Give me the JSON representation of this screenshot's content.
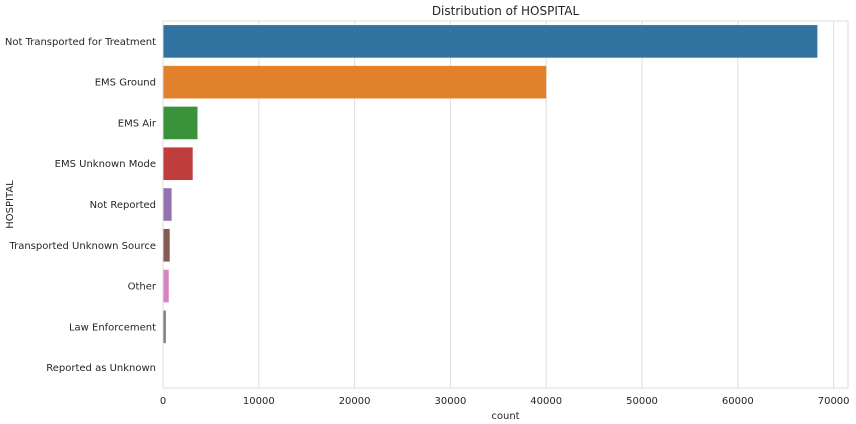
{
  "chart_data": {
    "type": "bar",
    "orientation": "horizontal",
    "title": "Distribution of HOSPITAL",
    "xlabel": "count",
    "ylabel": "HOSPITAL",
    "categories": [
      "Not Transported for Treatment",
      "EMS Ground",
      "EMS Air",
      "EMS Unknown Mode",
      "Not Reported",
      "Transported  Unknown Source",
      "Other",
      "Law Enforcement",
      "Reported as Unknown"
    ],
    "values": [
      68300,
      40000,
      3600,
      3100,
      900,
      700,
      600,
      300,
      20
    ],
    "colors": [
      "#3274a1",
      "#e1812c",
      "#3a923a",
      "#c03d3e",
      "#9372b2",
      "#845b53",
      "#d684bd",
      "#7f7f7f",
      "#a9aa35"
    ],
    "xlim": [
      0,
      71500
    ],
    "xticks": [
      0,
      10000,
      20000,
      30000,
      40000,
      50000,
      60000,
      70000
    ],
    "grid": true,
    "style": {
      "background": "#ffffff",
      "grid_color": "#dddddd",
      "text_color": "#262626"
    }
  }
}
